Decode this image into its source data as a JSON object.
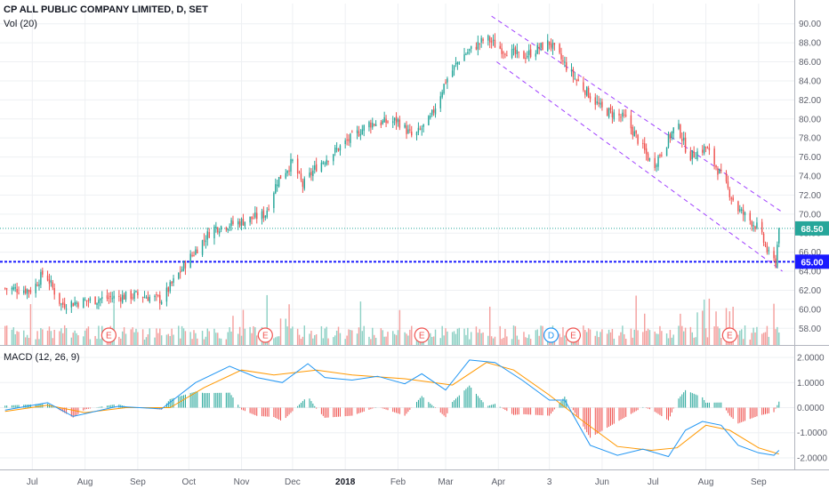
{
  "header": {
    "title": "CP ALL PUBLIC COMPANY LIMITED, D, SET",
    "volume_label": "Vol (20)",
    "macd_label": "MACD (12, 26, 9)"
  },
  "colors": {
    "up": "#26a69a",
    "down": "#ef5350",
    "volume_up": "#8ed1c5",
    "volume_down": "#f4a09e",
    "macd_line": "#2196f3",
    "signal_line": "#ff9800",
    "hist_pos": "#26a69a",
    "hist_neg": "#ef5350",
    "channel": "#a040ff",
    "last_price_line": "#26a69a",
    "level_line": "#1a1aff"
  },
  "chart_data": [
    {
      "type": "candlestick",
      "y_ticks": [
        "58.00",
        "60.00",
        "62.00",
        "64.00",
        "66.00",
        "68.00",
        "70.00",
        "72.00",
        "74.00",
        "76.00",
        "78.00",
        "80.00",
        "82.00",
        "84.00",
        "86.00",
        "88.00",
        "90.00"
      ],
      "ylim": [
        57,
        91
      ],
      "x_ticks": [
        "Jul",
        "Aug",
        "Sep",
        "Oct",
        "Nov",
        "Dec",
        "2018",
        "Feb",
        "Mar",
        "Apr",
        "3",
        "Jun",
        "Jul",
        "Aug",
        "Sep"
      ],
      "price_tags": {
        "last": "68.50",
        "level": "65.00"
      },
      "horizontal_lines": [
        68.5,
        65.0
      ],
      "channel": {
        "upper": [
          {
            "x": "2018-03-28",
            "y": 90.8
          },
          {
            "x": "2018-09-15",
            "y": 70.2
          }
        ],
        "lower": [
          {
            "x": "2018-03-31",
            "y": 86.0
          },
          {
            "x": "2018-09-15",
            "y": 64.0
          }
        ]
      },
      "anchors": [
        {
          "x": "2017-06-15",
          "y": 62.2
        },
        {
          "x": "2017-07-01",
          "y": 62.0
        },
        {
          "x": "2017-07-08",
          "y": 64.0
        },
        {
          "x": "2017-07-15",
          "y": 61.5
        },
        {
          "x": "2017-07-18",
          "y": 60.5
        },
        {
          "x": "2017-08-15",
          "y": 61.2
        },
        {
          "x": "2017-09-01",
          "y": 61.5
        },
        {
          "x": "2017-09-15",
          "y": 61.0
        },
        {
          "x": "2017-09-29",
          "y": 64.8
        },
        {
          "x": "2017-10-15",
          "y": 68.5
        },
        {
          "x": "2017-11-01",
          "y": 69.2
        },
        {
          "x": "2017-11-15",
          "y": 70.0
        },
        {
          "x": "2017-11-22",
          "y": 73.5
        },
        {
          "x": "2017-12-01",
          "y": 75.5
        },
        {
          "x": "2017-12-07",
          "y": 73.0
        },
        {
          "x": "2017-12-15",
          "y": 75.0
        },
        {
          "x": "2018-01-01",
          "y": 77.5
        },
        {
          "x": "2018-01-15",
          "y": 79.5
        },
        {
          "x": "2018-02-01",
          "y": 79.8
        },
        {
          "x": "2018-02-10",
          "y": 78.0
        },
        {
          "x": "2018-02-20",
          "y": 80.0
        },
        {
          "x": "2018-03-01",
          "y": 84.0
        },
        {
          "x": "2018-03-10",
          "y": 86.5
        },
        {
          "x": "2018-03-25",
          "y": 88.5
        },
        {
          "x": "2018-04-01",
          "y": 87.5
        },
        {
          "x": "2018-04-15",
          "y": 86.5
        },
        {
          "x": "2018-05-01",
          "y": 88.0
        },
        {
          "x": "2018-05-15",
          "y": 84.5
        },
        {
          "x": "2018-06-01",
          "y": 81.0
        },
        {
          "x": "2018-06-15",
          "y": 80.0
        },
        {
          "x": "2018-07-01",
          "y": 75.0
        },
        {
          "x": "2018-07-15",
          "y": 79.5
        },
        {
          "x": "2018-07-22",
          "y": 76.0
        },
        {
          "x": "2018-08-01",
          "y": 77.0
        },
        {
          "x": "2018-08-10",
          "y": 74.0
        },
        {
          "x": "2018-08-20",
          "y": 70.5
        },
        {
          "x": "2018-09-01",
          "y": 68.5
        },
        {
          "x": "2018-09-08",
          "y": 65.2
        },
        {
          "x": "2018-09-11",
          "y": 65.0
        },
        {
          "x": "2018-09-13",
          "y": 68.5
        }
      ],
      "earnings_markers": [
        {
          "label": "E",
          "x": "2017-08-15"
        },
        {
          "label": "E",
          "x": "2017-11-15"
        },
        {
          "label": "E",
          "x": "2018-02-15"
        },
        {
          "label": "D",
          "x": "2018-05-02"
        },
        {
          "label": "E",
          "x": "2018-05-15"
        },
        {
          "label": "E",
          "x": "2018-08-15"
        }
      ]
    },
    {
      "type": "line",
      "name": "MACD (12, 26, 9)",
      "y_ticks": [
        "2.0000",
        "1.0000",
        "0.0000",
        "-1.0000",
        "-2.0000"
      ],
      "ylim": [
        -2.25,
        2.25
      ],
      "x_ticks": [
        "Jul",
        "Aug",
        "Sep",
        "Oct",
        "Nov",
        "Dec",
        "2018",
        "Feb",
        "Mar",
        "Apr",
        "3",
        "Jun",
        "Jul",
        "Aug",
        "Sep"
      ],
      "macd": [
        {
          "x": "2017-06-15",
          "y": -0.1
        },
        {
          "x": "2017-07-10",
          "y": 0.2
        },
        {
          "x": "2017-07-25",
          "y": -0.35
        },
        {
          "x": "2017-08-20",
          "y": 0.05
        },
        {
          "x": "2017-09-15",
          "y": -0.05
        },
        {
          "x": "2017-10-05",
          "y": 1.0
        },
        {
          "x": "2017-10-25",
          "y": 1.65
        },
        {
          "x": "2017-11-10",
          "y": 1.2
        },
        {
          "x": "2017-11-25",
          "y": 1.0
        },
        {
          "x": "2017-12-10",
          "y": 1.75
        },
        {
          "x": "2017-12-20",
          "y": 1.2
        },
        {
          "x": "2018-01-05",
          "y": 1.1
        },
        {
          "x": "2018-01-20",
          "y": 1.25
        },
        {
          "x": "2018-02-05",
          "y": 0.95
        },
        {
          "x": "2018-02-15",
          "y": 1.35
        },
        {
          "x": "2018-03-01",
          "y": 0.7
        },
        {
          "x": "2018-03-15",
          "y": 1.9
        },
        {
          "x": "2018-03-30",
          "y": 1.8
        },
        {
          "x": "2018-04-15",
          "y": 1.1
        },
        {
          "x": "2018-05-01",
          "y": 0.3
        },
        {
          "x": "2018-05-10",
          "y": 0.3
        },
        {
          "x": "2018-05-25",
          "y": -1.5
        },
        {
          "x": "2018-06-10",
          "y": -1.9
        },
        {
          "x": "2018-06-25",
          "y": -1.65
        },
        {
          "x": "2018-07-10",
          "y": -1.95
        },
        {
          "x": "2018-07-20",
          "y": -0.9
        },
        {
          "x": "2018-07-30",
          "y": -0.55
        },
        {
          "x": "2018-08-10",
          "y": -0.7
        },
        {
          "x": "2018-08-20",
          "y": -1.5
        },
        {
          "x": "2018-09-01",
          "y": -1.8
        },
        {
          "x": "2018-09-10",
          "y": -1.9
        },
        {
          "x": "2018-09-13",
          "y": -1.7
        }
      ],
      "signal": [
        {
          "x": "2017-06-15",
          "y": -0.15
        },
        {
          "x": "2017-07-10",
          "y": 0.1
        },
        {
          "x": "2017-08-01",
          "y": -0.2
        },
        {
          "x": "2017-08-25",
          "y": 0.0
        },
        {
          "x": "2017-09-20",
          "y": 0.0
        },
        {
          "x": "2017-10-10",
          "y": 0.8
        },
        {
          "x": "2017-11-01",
          "y": 1.5
        },
        {
          "x": "2017-11-20",
          "y": 1.3
        },
        {
          "x": "2017-12-15",
          "y": 1.5
        },
        {
          "x": "2018-01-05",
          "y": 1.3
        },
        {
          "x": "2018-02-05",
          "y": 1.15
        },
        {
          "x": "2018-03-05",
          "y": 0.9
        },
        {
          "x": "2018-03-25",
          "y": 1.8
        },
        {
          "x": "2018-04-10",
          "y": 1.5
        },
        {
          "x": "2018-05-01",
          "y": 0.5
        },
        {
          "x": "2018-05-20",
          "y": -0.5
        },
        {
          "x": "2018-06-10",
          "y": -1.55
        },
        {
          "x": "2018-06-30",
          "y": -1.7
        },
        {
          "x": "2018-07-15",
          "y": -1.6
        },
        {
          "x": "2018-08-01",
          "y": -0.7
        },
        {
          "x": "2018-08-15",
          "y": -0.9
        },
        {
          "x": "2018-09-01",
          "y": -1.6
        },
        {
          "x": "2018-09-13",
          "y": -1.85
        }
      ]
    }
  ]
}
